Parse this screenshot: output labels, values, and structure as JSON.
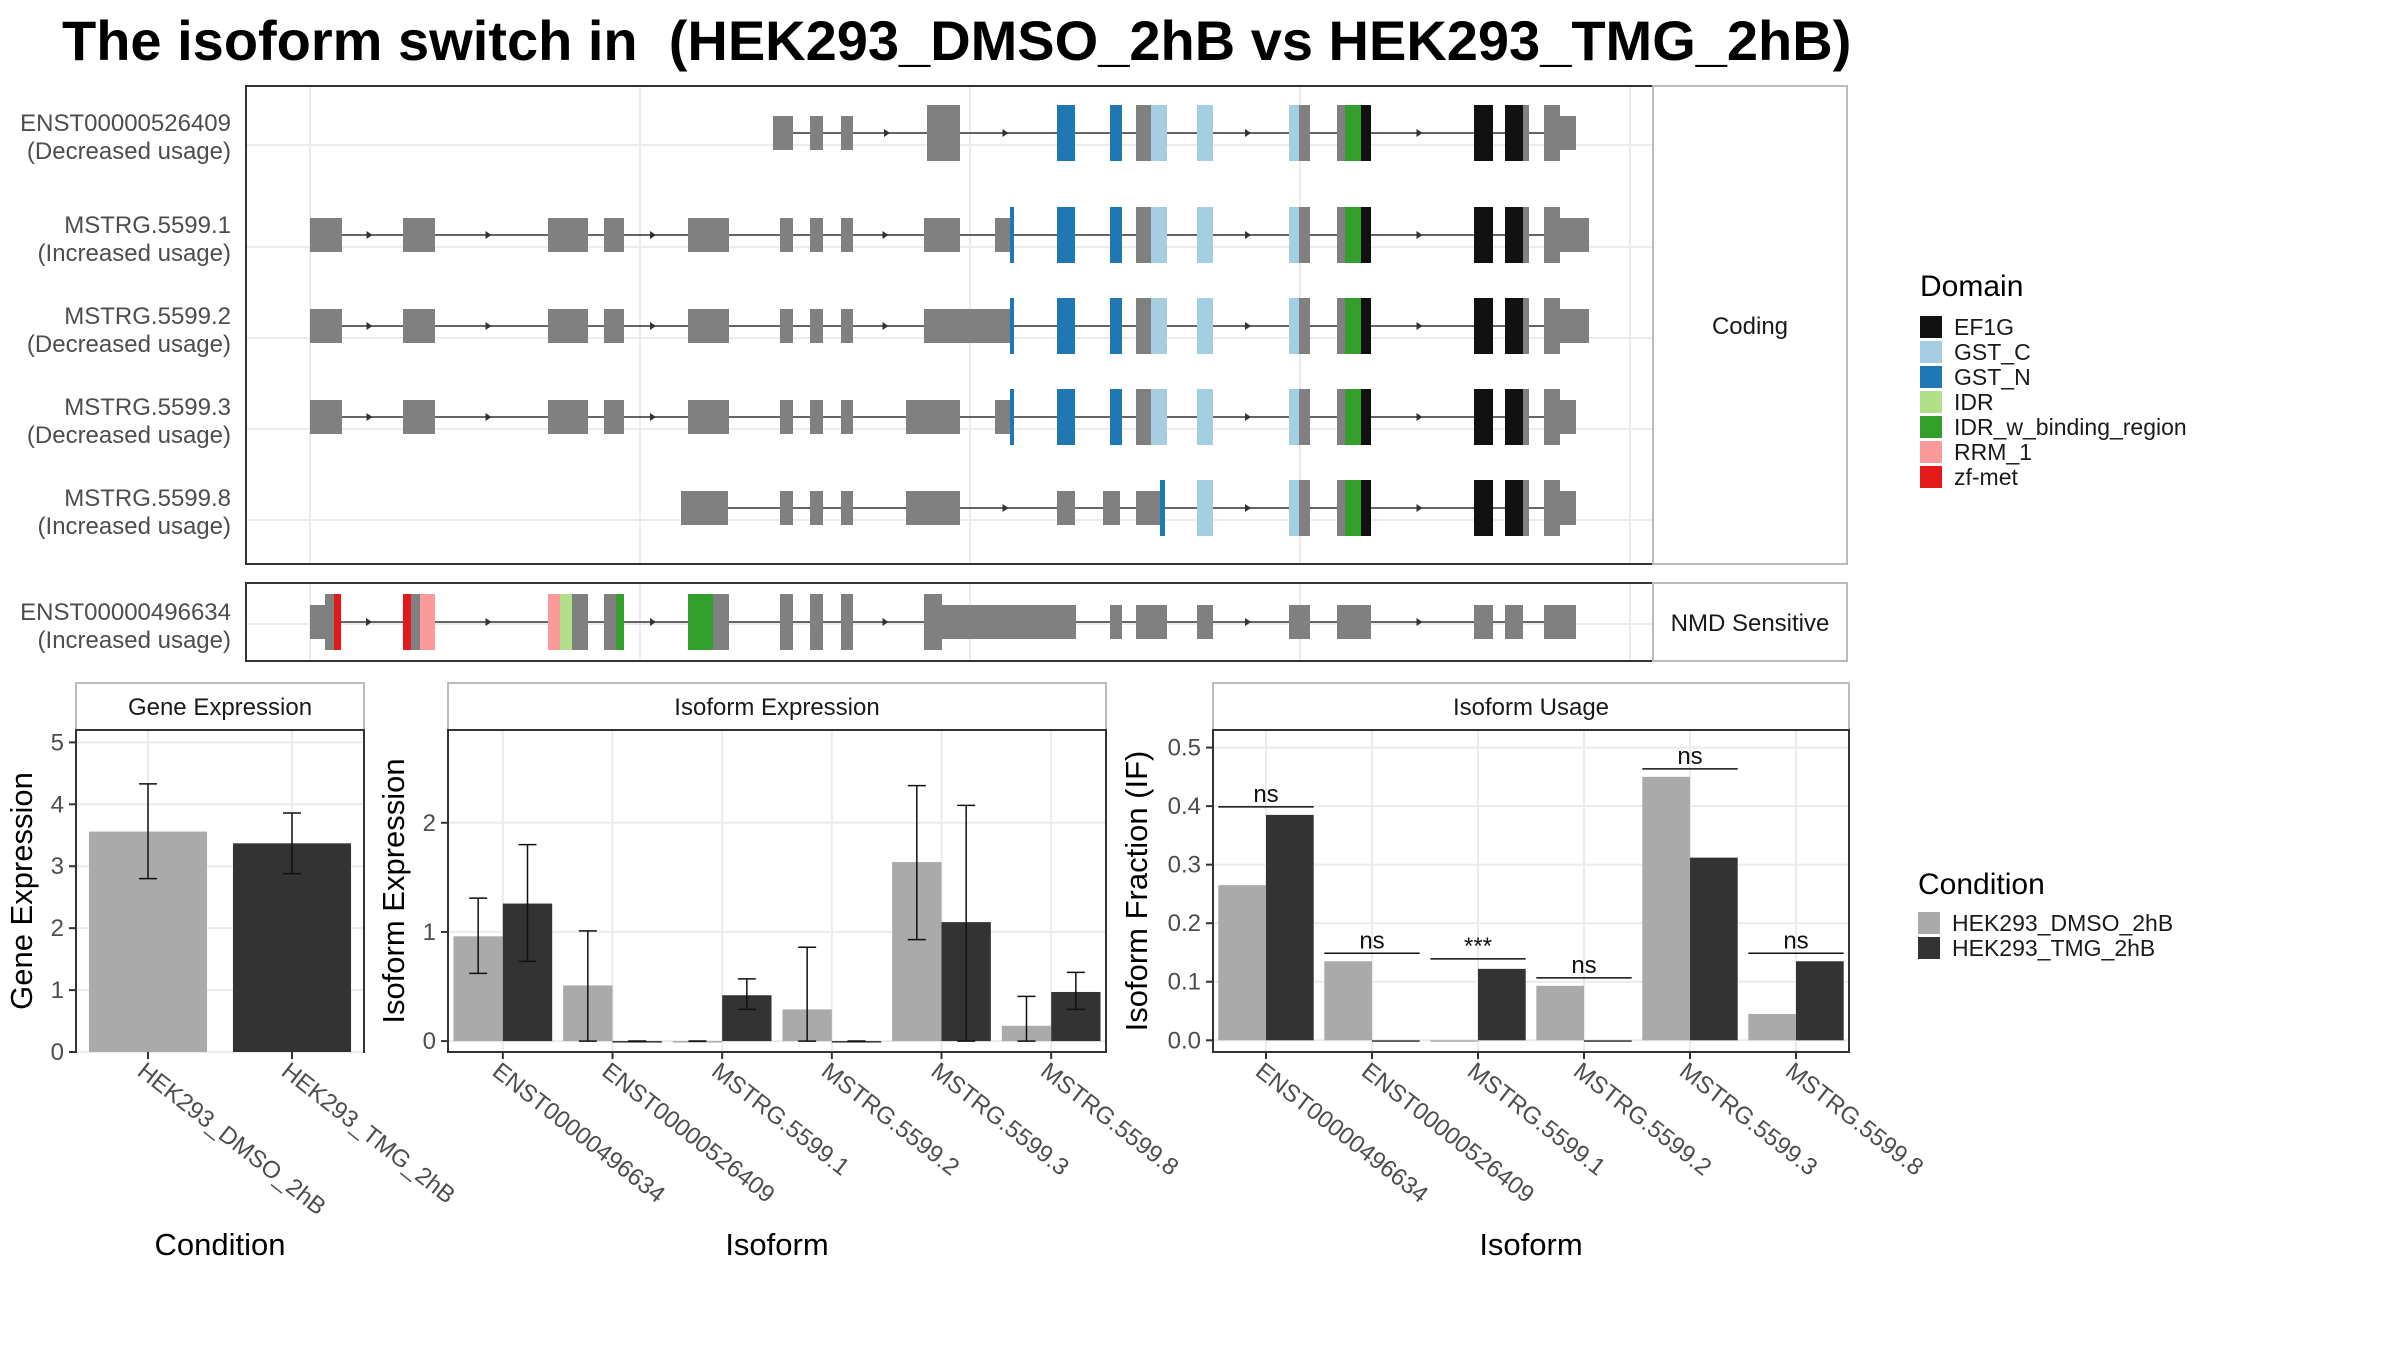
{
  "title": "The isoform switch in  (HEK293_DMSO_2hB vs HEK293_TMG_2hB)",
  "colors": {
    "EF1G": "#111111",
    "GST_C": "#a6cee3",
    "GST_N": "#1f78b4",
    "IDR": "#b2df8a",
    "IDR_w_binding_region": "#33a02c",
    "RRM_1": "#fb9a99",
    "zf-met": "#e31a1c",
    "exon": "#808080",
    "dmso": "#aaaaaa",
    "tmg": "#333333"
  },
  "structure": {
    "panels": [
      {
        "label": "Coding",
        "tracks": [
          {
            "name": "ENST00000526409",
            "usage": "(Decreased usage)"
          },
          {
            "name": "MSTRG.5599.1",
            "usage": "(Increased usage)"
          },
          {
            "name": "MSTRG.5599.2",
            "usage": "(Decreased usage)"
          },
          {
            "name": "MSTRG.5599.3",
            "usage": "(Decreased usage)"
          },
          {
            "name": "MSTRG.5599.8",
            "usage": "(Increased usage)"
          }
        ]
      },
      {
        "label": "NMD Sensitive",
        "tracks": [
          {
            "name": "ENST00000496634",
            "usage": "(Increased usage)"
          }
        ]
      }
    ],
    "domain_legend_title": "Domain",
    "domains": [
      "EF1G",
      "GST_C",
      "GST_N",
      "IDR",
      "IDR_w_binding_region",
      "RRM_1",
      "zf-met"
    ]
  },
  "chart_data": [
    {
      "type": "bar",
      "title": "Gene Expression",
      "xlabel": "Condition",
      "ylabel": "Gene Expression",
      "categories": [
        "HEK293_DMSO_2hB",
        "HEK293_TMG_2hB"
      ],
      "values": [
        3.56,
        3.37
      ],
      "errors": [
        [
          2.8,
          4.33
        ],
        [
          2.88,
          3.86
        ]
      ],
      "ylim": [
        0,
        5.2
      ],
      "yticks": [
        "0",
        "1",
        "2",
        "3",
        "4",
        "5"
      ],
      "grid": true
    },
    {
      "type": "bar",
      "title": "Isoform Expression",
      "xlabel": "Isoform",
      "ylabel": "Isoform Expression",
      "categories": [
        "ENST00000496634",
        "ENST00000526409",
        "MSTRG.5599.1",
        "MSTRG.5599.2",
        "MSTRG.5599.3",
        "MSTRG.5599.8"
      ],
      "series": [
        {
          "name": "HEK293_DMSO_2hB",
          "values": [
            0.96,
            0.51,
            0.0,
            0.29,
            1.64,
            0.14
          ],
          "errors": [
            [
              0.62,
              1.31
            ],
            [
              0.0,
              1.01
            ],
            [
              0.0,
              0.0
            ],
            [
              0.0,
              0.86
            ],
            [
              0.93,
              2.34
            ],
            [
              0.0,
              0.41
            ]
          ]
        },
        {
          "name": "HEK293_TMG_2hB",
          "values": [
            1.26,
            0.0,
            0.42,
            0.0,
            1.09,
            0.45
          ],
          "errors": [
            [
              0.73,
              1.8
            ],
            [
              0.0,
              0.0
            ],
            [
              0.29,
              0.57
            ],
            [
              0.0,
              0.0
            ],
            [
              0.0,
              2.16
            ],
            [
              0.29,
              0.63
            ]
          ]
        }
      ],
      "ylim": [
        -0.1,
        2.85
      ],
      "yticks": [
        "0",
        "1",
        "2"
      ],
      "grid": true
    },
    {
      "type": "bar",
      "title": "Isoform Usage",
      "xlabel": "Isoform",
      "ylabel": "Isoform Fraction (IF)",
      "categories": [
        "ENST00000496634",
        "ENST00000526409",
        "MSTRG.5599.1",
        "MSTRG.5599.2",
        "MSTRG.5599.3",
        "MSTRG.5599.8"
      ],
      "series": [
        {
          "name": "HEK293_DMSO_2hB",
          "values": [
            0.265,
            0.135,
            0.0,
            0.093,
            0.45,
            0.045
          ]
        },
        {
          "name": "HEK293_TMG_2hB",
          "values": [
            0.385,
            0.0,
            0.122,
            0.0,
            0.312,
            0.135
          ]
        }
      ],
      "significance": [
        "ns",
        "ns",
        "***",
        "ns",
        "ns",
        "ns"
      ],
      "ylim": [
        -0.02,
        0.53
      ],
      "yticks": [
        "0.0",
        "0.1",
        "0.2",
        "0.3",
        "0.4",
        "0.5"
      ],
      "grid": true
    }
  ],
  "condition_legend": {
    "title": "Condition",
    "items": [
      "HEK293_DMSO_2hB",
      "HEK293_TMG_2hB"
    ]
  }
}
